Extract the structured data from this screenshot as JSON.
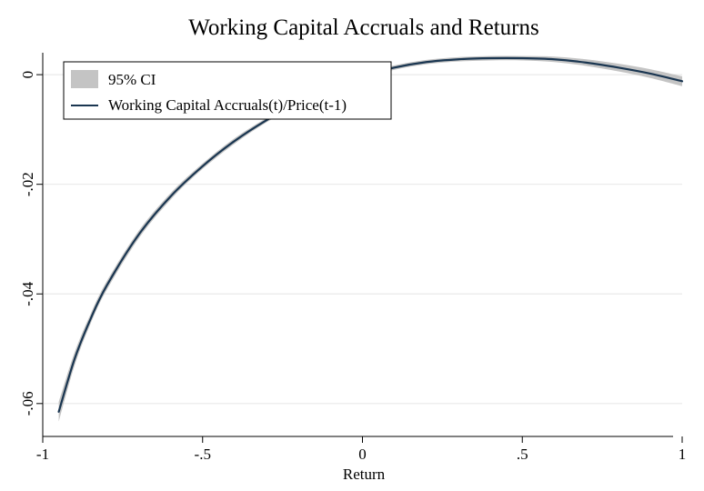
{
  "chart_data": {
    "type": "line",
    "title": "Working Capital Accruals and Returns",
    "xlabel": "Return",
    "ylabel": "",
    "xlim": [
      -1,
      1
    ],
    "ylim": [
      -0.066,
      0.004
    ],
    "x_ticks": [
      {
        "value": -1,
        "label": "-1"
      },
      {
        "value": -0.5,
        "label": "-.5"
      },
      {
        "value": 0,
        "label": "0"
      },
      {
        "value": 0.5,
        "label": ".5"
      },
      {
        "value": 1,
        "label": "1"
      }
    ],
    "y_ticks": [
      {
        "value": 0,
        "label": "0"
      },
      {
        "value": -0.02,
        "label": "-.02"
      },
      {
        "value": -0.04,
        "label": "-.04"
      },
      {
        "value": -0.06,
        "label": "-.06"
      }
    ],
    "grid": "horizontal",
    "legend": {
      "placement": "top-left",
      "entries": [
        {
          "label": "95% CI",
          "kind": "band"
        },
        {
          "label": "Working Capital Accruals(t)/Price(t-1)",
          "kind": "line"
        }
      ]
    },
    "series": [
      {
        "name": "Working Capital Accruals(t)/Price(t-1)",
        "x": [
          -0.95,
          -0.9,
          -0.85,
          -0.8,
          -0.7,
          -0.6,
          -0.5,
          -0.4,
          -0.3,
          -0.2,
          -0.1,
          0,
          0.1,
          0.2,
          0.3,
          0.4,
          0.5,
          0.6,
          0.7,
          0.8,
          0.9,
          1
        ],
        "y": [
          -0.0615,
          -0.0518,
          -0.0445,
          -0.0385,
          -0.0292,
          -0.0222,
          -0.0167,
          -0.0121,
          -0.0083,
          -0.0051,
          -0.0024,
          -0.0002,
          0.0013,
          0.0023,
          0.0028,
          0.003,
          0.003,
          0.0028,
          0.0022,
          0.0013,
          0.0002,
          -0.0012
        ],
        "ci_halfwidth": [
          0.0018,
          0.0012,
          0.0009,
          0.0008,
          0.0007,
          0.0006,
          0.0005,
          0.0005,
          0.0004,
          0.0004,
          0.0004,
          0.0004,
          0.0004,
          0.0004,
          0.0004,
          0.0004,
          0.0004,
          0.0005,
          0.0006,
          0.0007,
          0.0008,
          0.0009
        ]
      }
    ],
    "colors": {
      "line": "#1a3651",
      "band": "#c4c4c4",
      "grid": "#eaeaea",
      "axis": "#000000",
      "background": "#ffffff"
    }
  }
}
